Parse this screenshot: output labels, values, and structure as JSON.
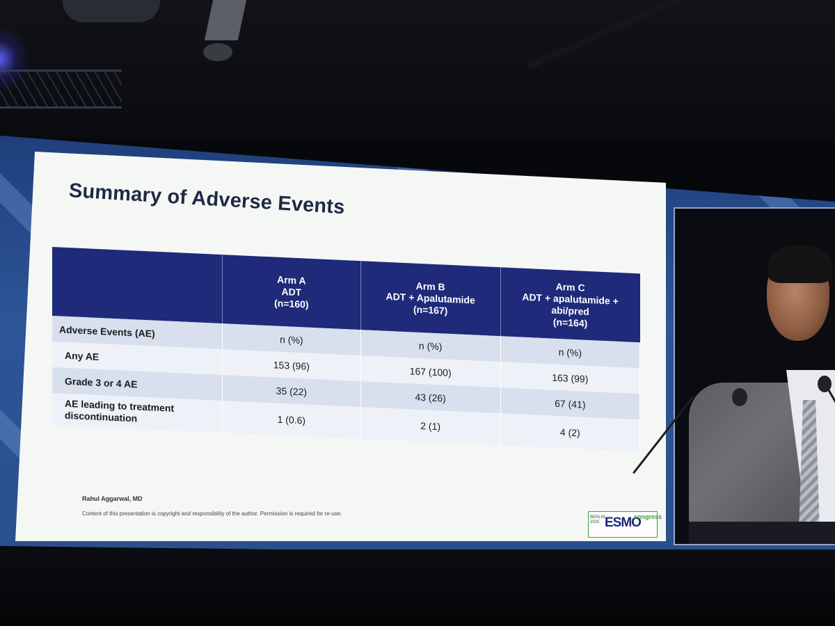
{
  "slide": {
    "title": "Summary of Adverse Events",
    "table": {
      "headers": [
        {
          "line1": "",
          "line2": "",
          "line3": ""
        },
        {
          "line1": "Arm A",
          "line2": "ADT",
          "line3": "(n=160)"
        },
        {
          "line1": "Arm B",
          "line2": "ADT + Apalutamide",
          "line3": "(n=167)"
        },
        {
          "line1": "Arm C",
          "line2": "ADT + apalutamide +",
          "line3": "abi/pred",
          "line4": "(n=164)"
        }
      ],
      "rows": [
        {
          "label": "Adverse Events (AE)",
          "a": "n (%)",
          "b": "n (%)",
          "c": "n (%)"
        },
        {
          "label": "Any AE",
          "a": "153 (96)",
          "b": "167 (100)",
          "c": "163 (99)"
        },
        {
          "label": "Grade 3 or 4 AE",
          "a": "35 (22)",
          "b": "43 (26)",
          "c": "67 (41)"
        },
        {
          "label": "AE leading to treatment discontinuation",
          "a": "1 (0.6)",
          "b": "2 (1)",
          "c": "4 (2)"
        }
      ]
    },
    "footer": {
      "author": "Rahul Aggarwal, MD",
      "note": "Content of this presentation is copyright and responsibility of the author. Permission is required for re-use."
    },
    "logo": {
      "city": "BERLIN",
      "year": "2025",
      "brand": "ESMO",
      "word": "congress"
    }
  },
  "colors": {
    "header_bg": "#1f2a7a",
    "row_dark": "#d8e0ee",
    "row_light": "#eef1f7",
    "screen_blue": "#2d5597",
    "title_text": "#1e2a44",
    "logo_green": "#3d9c43"
  }
}
